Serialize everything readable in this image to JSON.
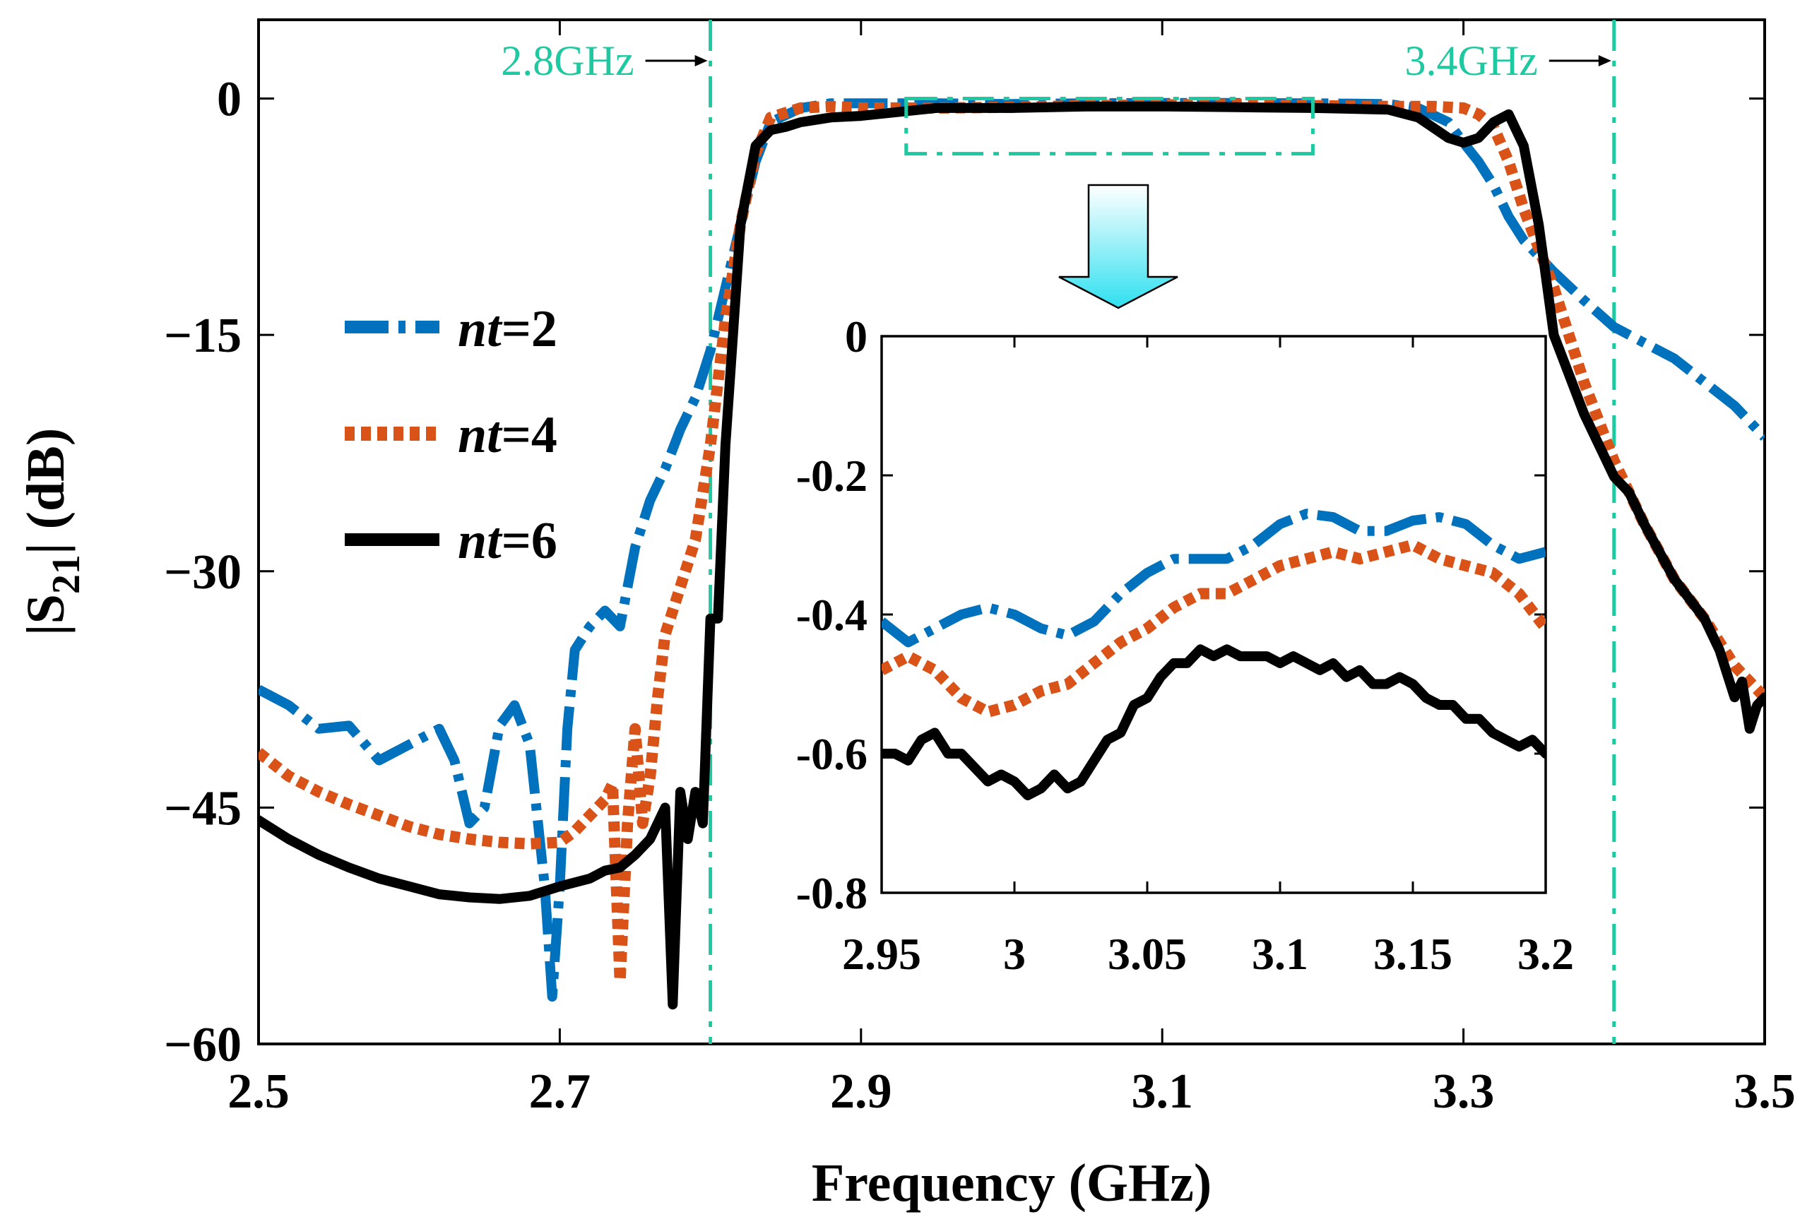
{
  "chart_data": {
    "type": "line",
    "title": "",
    "xlabel": "Frequency (GHz)",
    "ylabel": "|S21| (dB)",
    "ylabel_main": "|S",
    "ylabel_sub": "21",
    "ylabel_rest": "| (dB)",
    "xlim": [
      2.5,
      3.5
    ],
    "ylim": [
      -60,
      5
    ],
    "xticks": [
      2.5,
      2.7,
      2.9,
      3.1,
      3.3,
      3.5
    ],
    "xtick_labels": [
      "2.5",
      "2.7",
      "2.9",
      "3.1",
      "3.3",
      "3.5"
    ],
    "yticks": [
      0,
      -15,
      -30,
      -45,
      -60
    ],
    "ytick_labels": [
      "0",
      "−15",
      "−30",
      "−45",
      "−60"
    ],
    "legend_position": "left",
    "series": [
      {
        "name": "nt=2",
        "name_italic": "nt",
        "name_rest": "=2",
        "color": "#0072bd",
        "style": "dashdot",
        "x": [
          2.5,
          2.52,
          2.54,
          2.56,
          2.58,
          2.6,
          2.62,
          2.63,
          2.64,
          2.65,
          2.66,
          2.67,
          2.68,
          2.69,
          2.695,
          2.7,
          2.705,
          2.71,
          2.72,
          2.73,
          2.74,
          2.75,
          2.76,
          2.77,
          2.78,
          2.79,
          2.8,
          2.81,
          2.82,
          2.83,
          2.84,
          2.86,
          2.88,
          2.9,
          2.95,
          3.0,
          3.05,
          3.1,
          3.15,
          3.2,
          3.25,
          3.27,
          3.29,
          3.3,
          3.31,
          3.32,
          3.33,
          3.34,
          3.36,
          3.38,
          3.4,
          3.42,
          3.44,
          3.46,
          3.48,
          3.5
        ],
        "y": [
          -37.5,
          -38.5,
          -40,
          -39.8,
          -42,
          -41,
          -40,
          -42,
          -46,
          -45,
          -39.8,
          -38.5,
          -41,
          -50,
          -57,
          -50,
          -40,
          -35,
          -33.5,
          -32.5,
          -33.5,
          -28.5,
          -25.5,
          -23.5,
          -21,
          -19,
          -16,
          -12,
          -8,
          -4,
          -1.5,
          -0.6,
          -0.3,
          -0.3,
          -0.3,
          -0.35,
          -0.3,
          -0.28,
          -0.28,
          -0.3,
          -0.35,
          -0.6,
          -1.5,
          -2.8,
          -4,
          -5.5,
          -7.5,
          -9,
          -11,
          -12.8,
          -14.5,
          -15.5,
          -16.5,
          -18,
          -19.5,
          -21.5
        ]
      },
      {
        "name": "nt=4",
        "name_italic": "nt",
        "name_rest": "=4",
        "color": "#d95319",
        "style": "dotted",
        "x": [
          2.5,
          2.52,
          2.54,
          2.56,
          2.58,
          2.6,
          2.62,
          2.64,
          2.66,
          2.68,
          2.7,
          2.71,
          2.72,
          2.73,
          2.735,
          2.74,
          2.745,
          2.75,
          2.755,
          2.76,
          2.765,
          2.77,
          2.78,
          2.79,
          2.8,
          2.81,
          2.82,
          2.83,
          2.84,
          2.86,
          2.88,
          2.9,
          2.95,
          3.0,
          3.05,
          3.1,
          3.15,
          3.2,
          3.25,
          3.28,
          3.3,
          3.31,
          3.32,
          3.33,
          3.34,
          3.36,
          3.38,
          3.4,
          3.42,
          3.44,
          3.46,
          3.48,
          3.5
        ],
        "y": [
          -41.5,
          -43,
          -44,
          -44.8,
          -45.5,
          -46.2,
          -46.7,
          -47,
          -47.2,
          -47.3,
          -47.2,
          -46.5,
          -45.5,
          -44.5,
          -43.5,
          -56,
          -46,
          -40,
          -46,
          -43,
          -38,
          -34,
          -31,
          -28,
          -22,
          -14,
          -8,
          -3.5,
          -1.2,
          -0.6,
          -0.5,
          -0.6,
          -0.6,
          -0.55,
          -0.45,
          -0.4,
          -0.38,
          -0.45,
          -0.5,
          -0.5,
          -0.6,
          -1.0,
          -1.8,
          -4,
          -7,
          -12,
          -18,
          -23,
          -27,
          -30.5,
          -33,
          -36,
          -38
        ]
      },
      {
        "name": "nt=6",
        "name_italic": "nt",
        "name_rest": "=6",
        "color": "#000000",
        "style": "solid",
        "x": [
          2.5,
          2.52,
          2.54,
          2.56,
          2.58,
          2.6,
          2.62,
          2.64,
          2.66,
          2.68,
          2.7,
          2.72,
          2.73,
          2.74,
          2.75,
          2.76,
          2.77,
          2.775,
          2.78,
          2.785,
          2.79,
          2.795,
          2.8,
          2.805,
          2.81,
          2.815,
          2.82,
          2.83,
          2.84,
          2.85,
          2.86,
          2.88,
          2.9,
          2.95,
          3.0,
          3.05,
          3.1,
          3.15,
          3.2,
          3.25,
          3.27,
          3.29,
          3.3,
          3.31,
          3.32,
          3.33,
          3.34,
          3.35,
          3.36,
          3.38,
          3.39,
          3.4,
          3.41,
          3.42,
          3.44,
          3.46,
          3.47,
          3.48,
          3.485,
          3.49,
          3.495,
          3.5
        ],
        "y": [
          -45.8,
          -47,
          -48,
          -48.8,
          -49.5,
          -50,
          -50.5,
          -50.7,
          -50.8,
          -50.6,
          -50,
          -49.5,
          -49,
          -48.8,
          -48,
          -47,
          -45,
          -57.5,
          -44,
          -47,
          -44,
          -46,
          -33,
          -33,
          -22,
          -15,
          -8,
          -3,
          -2,
          -1.8,
          -1.5,
          -1.2,
          -1.1,
          -0.6,
          -0.6,
          -0.5,
          -0.5,
          -0.55,
          -0.6,
          -0.7,
          -1.2,
          -2.5,
          -2.8,
          -2.5,
          -1.5,
          -1,
          -3,
          -8,
          -15,
          -20,
          -22,
          -24,
          -25,
          -27,
          -30.5,
          -33,
          -35,
          -38,
          -37,
          -40,
          -38.5,
          -38
        ]
      }
    ],
    "annotations": [
      {
        "text": "2.8GHz",
        "x": 2.8
      },
      {
        "text": "3.4GHz",
        "x": 3.4
      }
    ],
    "zoom_box": {
      "x": [
        2.93,
        3.2
      ],
      "y": [
        -3.5,
        0
      ]
    },
    "inset": {
      "xlim": [
        2.95,
        3.2
      ],
      "ylim": [
        -0.8,
        0
      ],
      "xticks": [
        2.95,
        3.0,
        3.05,
        3.1,
        3.15,
        3.2
      ],
      "xtick_labels": [
        "2.95",
        "3",
        "3.05",
        "3.1",
        "3.15",
        "3.2"
      ],
      "yticks": [
        0,
        -0.2,
        -0.4,
        -0.6,
        -0.8
      ],
      "ytick_labels": [
        "0",
        "-0.2",
        "-0.4",
        "-0.6",
        "-0.8"
      ],
      "series": [
        {
          "name": "nt=2",
          "x": [
            2.95,
            2.96,
            2.97,
            2.98,
            2.99,
            3.0,
            3.01,
            3.02,
            3.03,
            3.04,
            3.05,
            3.06,
            3.07,
            3.08,
            3.09,
            3.1,
            3.11,
            3.12,
            3.13,
            3.14,
            3.15,
            3.16,
            3.17,
            3.18,
            3.19,
            3.2
          ],
          "y": [
            -0.41,
            -0.44,
            -0.42,
            -0.4,
            -0.39,
            -0.4,
            -0.42,
            -0.43,
            -0.41,
            -0.37,
            -0.34,
            -0.32,
            -0.32,
            -0.32,
            -0.3,
            -0.27,
            -0.255,
            -0.26,
            -0.28,
            -0.28,
            -0.265,
            -0.26,
            -0.27,
            -0.3,
            -0.32,
            -0.31
          ]
        },
        {
          "name": "nt=4",
          "x": [
            2.95,
            2.96,
            2.97,
            2.98,
            2.99,
            3.0,
            3.01,
            3.02,
            3.03,
            3.04,
            3.05,
            3.06,
            3.07,
            3.08,
            3.09,
            3.1,
            3.11,
            3.12,
            3.13,
            3.14,
            3.15,
            3.16,
            3.17,
            3.18,
            3.19,
            3.2
          ],
          "y": [
            -0.48,
            -0.46,
            -0.48,
            -0.52,
            -0.54,
            -0.53,
            -0.51,
            -0.5,
            -0.47,
            -0.44,
            -0.42,
            -0.39,
            -0.37,
            -0.37,
            -0.35,
            -0.33,
            -0.32,
            -0.31,
            -0.32,
            -0.31,
            -0.3,
            -0.32,
            -0.33,
            -0.34,
            -0.37,
            -0.42
          ]
        },
        {
          "name": "nt=6",
          "x": [
            2.95,
            2.955,
            2.96,
            2.965,
            2.97,
            2.975,
            2.98,
            2.985,
            2.99,
            2.995,
            3.0,
            3.005,
            3.01,
            3.015,
            3.02,
            3.025,
            3.03,
            3.035,
            3.04,
            3.045,
            3.05,
            3.055,
            3.06,
            3.065,
            3.07,
            3.075,
            3.08,
            3.085,
            3.09,
            3.095,
            3.1,
            3.105,
            3.11,
            3.115,
            3.12,
            3.125,
            3.13,
            3.135,
            3.14,
            3.145,
            3.15,
            3.155,
            3.16,
            3.165,
            3.17,
            3.175,
            3.18,
            3.185,
            3.19,
            3.195,
            3.2
          ],
          "y": [
            -0.6,
            -0.6,
            -0.61,
            -0.58,
            -0.57,
            -0.6,
            -0.6,
            -0.62,
            -0.64,
            -0.63,
            -0.64,
            -0.66,
            -0.65,
            -0.63,
            -0.65,
            -0.64,
            -0.61,
            -0.58,
            -0.57,
            -0.53,
            -0.52,
            -0.49,
            -0.47,
            -0.47,
            -0.45,
            -0.46,
            -0.45,
            -0.46,
            -0.46,
            -0.46,
            -0.47,
            -0.46,
            -0.47,
            -0.48,
            -0.47,
            -0.49,
            -0.48,
            -0.5,
            -0.5,
            -0.49,
            -0.5,
            -0.52,
            -0.53,
            -0.53,
            -0.55,
            -0.55,
            -0.57,
            -0.58,
            -0.59,
            -0.58,
            -0.6
          ]
        }
      ]
    }
  }
}
